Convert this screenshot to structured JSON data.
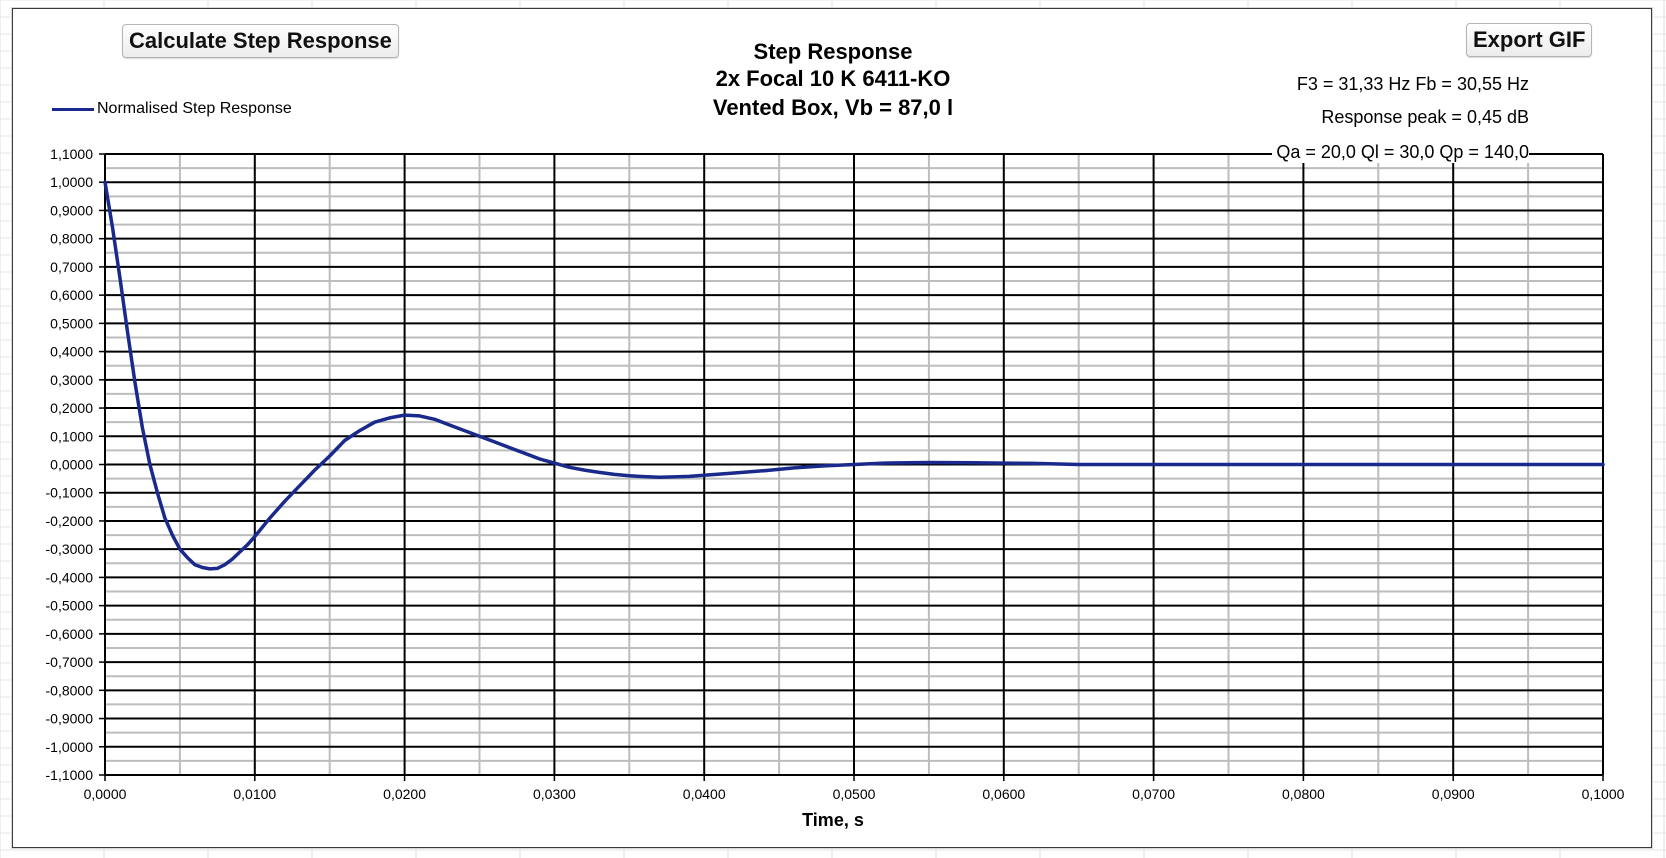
{
  "window": {
    "calc_button_label": "Calculate Step Response",
    "export_button_label": "Export GIF"
  },
  "colors": {
    "series": "#1a2a8c",
    "major_grid": "#000000",
    "minor_grid": "#bdbdbd"
  },
  "chart_data": {
    "type": "line",
    "title": "Step Response",
    "subtitle": [
      "2x Focal 10 K 6411-KO",
      "Vented Box, Vb = 87,0 l"
    ],
    "xlabel": "Time, s",
    "ylabel": "",
    "xlim": [
      0,
      0.1
    ],
    "ylim": [
      -1.1,
      1.1
    ],
    "x_ticks": [
      "0,0000",
      "0,0100",
      "0,0200",
      "0,0300",
      "0,0400",
      "0,0500",
      "0,0600",
      "0,0700",
      "0,0800",
      "0,0900",
      "0,1000"
    ],
    "y_ticks": [
      "1,1000",
      "1,0000",
      "0,9000",
      "0,8000",
      "0,7000",
      "0,6000",
      "0,5000",
      "0,4000",
      "0,3000",
      "0,2000",
      "0,1000",
      "0,0000",
      "-0,1000",
      "-0,2000",
      "-0,3000",
      "-0,4000",
      "-0,5000",
      "-0,6000",
      "-0,7000",
      "-0,8000",
      "-0,9000",
      "-1,0000",
      "-1,1000"
    ],
    "grid": true,
    "legend_position": "top-left",
    "annotations": [
      "F3 = 31,33 Hz  Fb = 30,55 Hz",
      "Response peak = 0,45 dB",
      "Qa = 20,0  Ql = 30,0  Qp = 140,0"
    ],
    "series": [
      {
        "name": "Normalised Step Response",
        "x": [
          0,
          0.0005,
          0.001,
          0.0015,
          0.002,
          0.0025,
          0.003,
          0.0035,
          0.004,
          0.0045,
          0.005,
          0.0055,
          0.006,
          0.0065,
          0.007,
          0.0075,
          0.008,
          0.0085,
          0.009,
          0.0095,
          0.01,
          0.011,
          0.012,
          0.013,
          0.014,
          0.015,
          0.016,
          0.017,
          0.018,
          0.019,
          0.02,
          0.021,
          0.022,
          0.023,
          0.024,
          0.025,
          0.026,
          0.027,
          0.028,
          0.029,
          0.03,
          0.031,
          0.032,
          0.033,
          0.034,
          0.035,
          0.036,
          0.037,
          0.038,
          0.039,
          0.04,
          0.042,
          0.044,
          0.046,
          0.048,
          0.05,
          0.052,
          0.055,
          0.058,
          0.06,
          0.062,
          0.065,
          0.07,
          0.08,
          0.09,
          0.1
        ],
        "y": [
          1.0,
          0.84,
          0.66,
          0.47,
          0.29,
          0.13,
          0.0,
          -0.1,
          -0.19,
          -0.25,
          -0.3,
          -0.33,
          -0.355,
          -0.365,
          -0.37,
          -0.368,
          -0.355,
          -0.335,
          -0.31,
          -0.285,
          -0.255,
          -0.19,
          -0.13,
          -0.075,
          -0.02,
          0.03,
          0.085,
          0.12,
          0.15,
          0.165,
          0.175,
          0.172,
          0.16,
          0.14,
          0.12,
          0.1,
          0.08,
          0.06,
          0.04,
          0.02,
          0.005,
          -0.01,
          -0.02,
          -0.028,
          -0.035,
          -0.04,
          -0.043,
          -0.045,
          -0.044,
          -0.042,
          -0.038,
          -0.03,
          -0.022,
          -0.012,
          -0.005,
          0.0,
          0.005,
          0.007,
          0.006,
          0.005,
          0.004,
          0.0,
          0.0,
          0.0,
          0.0,
          0.0
        ]
      }
    ]
  }
}
